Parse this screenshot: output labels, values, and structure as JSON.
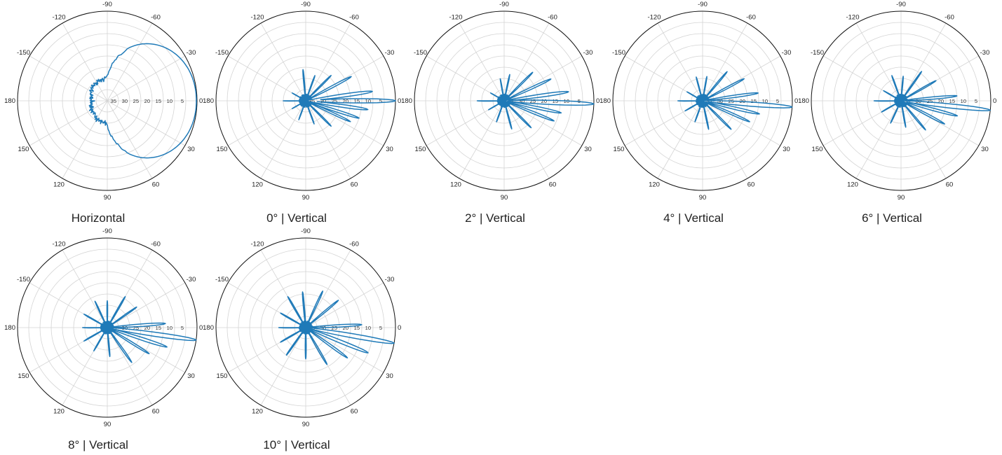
{
  "colors": {
    "trace": "#1f7ab8"
  },
  "chart_data": [
    {
      "type": "polar",
      "caption": "Horizontal",
      "angle_ticks": [
        "0",
        "30",
        "60",
        "90",
        "120",
        "150",
        "180",
        "-150",
        "-120",
        "-90",
        "-60",
        "-30"
      ],
      "radial_ticks": [
        "35",
        "30",
        "25",
        "20",
        "15",
        "10",
        "5",
        "0"
      ],
      "r_min": 40,
      "r_max": 0,
      "angle_direction": "clockwise from right, positive downward",
      "pattern": "wide_main_lobe"
    },
    {
      "type": "polar",
      "caption": "0°  |  Vertical",
      "angle_ticks": [
        "0",
        "30",
        "60",
        "90",
        "120",
        "150",
        "180",
        "-150",
        "-120",
        "-90",
        "-60",
        "-30"
      ],
      "radial_ticks": [
        "35",
        "30",
        "25",
        "20",
        "15",
        "10",
        "5",
        "0"
      ],
      "r_min": 40,
      "r_max": 0,
      "pattern": "vertical_lobes",
      "main_lobe": {
        "angle": 0,
        "value": 0
      },
      "lobes": [
        {
          "angle": -8,
          "value": 10
        },
        {
          "angle": 8,
          "value": 12
        },
        {
          "angle": 18,
          "value": 15
        },
        {
          "angle": 25,
          "value": 18
        },
        {
          "angle": -28,
          "value": 17
        },
        {
          "angle": 45,
          "value": 24
        },
        {
          "angle": -45,
          "value": 24
        },
        {
          "angle": 70,
          "value": 29
        },
        {
          "angle": -70,
          "value": 28
        },
        {
          "angle": -95,
          "value": 26
        },
        {
          "angle": 110,
          "value": 31
        },
        {
          "angle": 150,
          "value": 33
        },
        {
          "angle": 180,
          "value": 30
        },
        {
          "angle": -150,
          "value": 33
        }
      ]
    },
    {
      "type": "polar",
      "caption": "2°  |  Vertical",
      "angle_ticks": [
        "0",
        "30",
        "60",
        "90",
        "120",
        "150",
        "180",
        "-150",
        "-120",
        "-90",
        "-60",
        "-30"
      ],
      "radial_ticks": [
        "35",
        "30",
        "25",
        "20",
        "15",
        "10",
        "5",
        "0"
      ],
      "r_min": 40,
      "r_max": 0,
      "pattern": "vertical_lobes",
      "main_lobe": {
        "angle": 2,
        "value": 0
      },
      "lobes": [
        {
          "angle": -8,
          "value": 11
        },
        {
          "angle": 12,
          "value": 14
        },
        {
          "angle": 22,
          "value": 16
        },
        {
          "angle": -25,
          "value": 17
        },
        {
          "angle": 45,
          "value": 23
        },
        {
          "angle": -45,
          "value": 22
        },
        {
          "angle": 75,
          "value": 27
        },
        {
          "angle": -78,
          "value": 28
        },
        {
          "angle": -100,
          "value": 30
        },
        {
          "angle": 110,
          "value": 30
        },
        {
          "angle": 150,
          "value": 32
        },
        {
          "angle": 180,
          "value": 28
        },
        {
          "angle": -150,
          "value": 33
        }
      ]
    },
    {
      "type": "polar",
      "caption": "4°  |  Vertical",
      "angle_ticks": [
        "0",
        "30",
        "60",
        "90",
        "120",
        "150",
        "180",
        "-150",
        "-120",
        "-90",
        "-60",
        "-30"
      ],
      "radial_ticks": [
        "35",
        "30",
        "25",
        "20",
        "15",
        "10",
        "5",
        "0"
      ],
      "r_min": 40,
      "r_max": 0,
      "pattern": "vertical_lobes",
      "main_lobe": {
        "angle": 4,
        "value": 0
      },
      "lobes": [
        {
          "angle": -8,
          "value": 15
        },
        {
          "angle": 13,
          "value": 14
        },
        {
          "angle": 24,
          "value": 17
        },
        {
          "angle": -28,
          "value": 19
        },
        {
          "angle": 45,
          "value": 22
        },
        {
          "angle": -50,
          "value": 23
        },
        {
          "angle": 78,
          "value": 27
        },
        {
          "angle": -80,
          "value": 29
        },
        {
          "angle": -105,
          "value": 29
        },
        {
          "angle": 110,
          "value": 30
        },
        {
          "angle": 150,
          "value": 31
        },
        {
          "angle": 180,
          "value": 29
        },
        {
          "angle": -150,
          "value": 32
        }
      ]
    },
    {
      "type": "polar",
      "caption": "6°  |  Vertical",
      "angle_ticks": [
        "0",
        "30",
        "60",
        "90",
        "120",
        "150",
        "180",
        "-150",
        "-120",
        "-90",
        "-60",
        "-30"
      ],
      "radial_ticks": [
        "35",
        "30",
        "25",
        "20",
        "15",
        "10",
        "5",
        "0"
      ],
      "r_min": 40,
      "r_max": 0,
      "pattern": "vertical_lobes",
      "main_lobe": {
        "angle": 6,
        "value": 0
      },
      "lobes": [
        {
          "angle": -5,
          "value": 15
        },
        {
          "angle": 15,
          "value": 14
        },
        {
          "angle": 28,
          "value": 18
        },
        {
          "angle": -30,
          "value": 22
        },
        {
          "angle": 50,
          "value": 23
        },
        {
          "angle": -55,
          "value": 24
        },
        {
          "angle": 80,
          "value": 28
        },
        {
          "angle": -85,
          "value": 29
        },
        {
          "angle": -110,
          "value": 28
        },
        {
          "angle": 115,
          "value": 29
        },
        {
          "angle": 150,
          "value": 30
        },
        {
          "angle": 180,
          "value": 28
        },
        {
          "angle": -150,
          "value": 31
        }
      ]
    },
    {
      "type": "polar",
      "caption": "8°  |  Vertical",
      "angle_ticks": [
        "0",
        "30",
        "60",
        "90",
        "120",
        "150",
        "180",
        "-150",
        "-120",
        "-90",
        "-60",
        "-30"
      ],
      "radial_ticks": [
        "35",
        "30",
        "25",
        "20",
        "15",
        "10",
        "5",
        "0"
      ],
      "r_min": 40,
      "r_max": 0,
      "pattern": "vertical_lobes",
      "main_lobe": {
        "angle": 8,
        "value": 0
      },
      "lobes": [
        {
          "angle": -4,
          "value": 14
        },
        {
          "angle": 18,
          "value": 12
        },
        {
          "angle": 32,
          "value": 18
        },
        {
          "angle": -35,
          "value": 24
        },
        {
          "angle": 55,
          "value": 21
        },
        {
          "angle": -60,
          "value": 24
        },
        {
          "angle": 85,
          "value": 27
        },
        {
          "angle": -90,
          "value": 28
        },
        {
          "angle": -115,
          "value": 27
        },
        {
          "angle": 120,
          "value": 28
        },
        {
          "angle": 150,
          "value": 28
        },
        {
          "angle": 180,
          "value": 29
        },
        {
          "angle": -150,
          "value": 28
        }
      ]
    },
    {
      "type": "polar",
      "caption": "10°  |  Vertical",
      "angle_ticks": [
        "0",
        "30",
        "60",
        "90",
        "120",
        "150",
        "180",
        "-150",
        "-120",
        "-90",
        "-60",
        "-30"
      ],
      "radial_ticks": [
        "35",
        "30",
        "25",
        "20",
        "15",
        "10",
        "5",
        "0"
      ],
      "r_min": 40,
      "r_max": 0,
      "pattern": "vertical_lobes",
      "main_lobe": {
        "angle": 10,
        "value": 0
      },
      "lobes": [
        {
          "angle": -3,
          "value": 15
        },
        {
          "angle": 22,
          "value": 10
        },
        {
          "angle": 36,
          "value": 17
        },
        {
          "angle": -40,
          "value": 21
        },
        {
          "angle": 60,
          "value": 21
        },
        {
          "angle": -65,
          "value": 22
        },
        {
          "angle": 90,
          "value": 26
        },
        {
          "angle": -95,
          "value": 24
        },
        {
          "angle": -120,
          "value": 24
        },
        {
          "angle": 125,
          "value": 25
        },
        {
          "angle": 150,
          "value": 27
        },
        {
          "angle": 180,
          "value": 28
        },
        {
          "angle": -150,
          "value": 27
        }
      ]
    }
  ]
}
